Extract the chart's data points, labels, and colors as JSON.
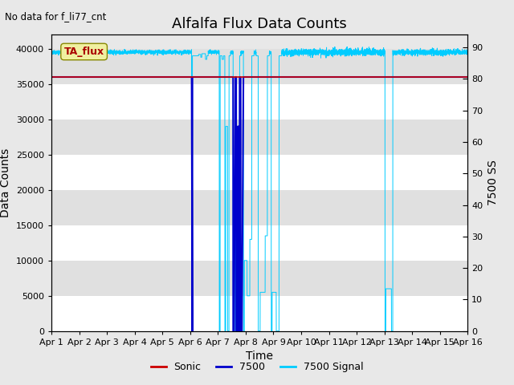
{
  "title": "Alfalfa Flux Data Counts",
  "no_data_label": "No data for f_li77_cnt",
  "ta_flux_label": "TA_flux",
  "xlabel": "Time",
  "ylabel_left": "Data Counts",
  "ylabel_right": "7500 SS",
  "xlim": [
    0,
    15
  ],
  "ylim_left": [
    0,
    42000
  ],
  "ylim_right": [
    0,
    94
  ],
  "yticks_left": [
    0,
    5000,
    10000,
    15000,
    20000,
    25000,
    30000,
    35000,
    40000
  ],
  "yticks_right": [
    0,
    10,
    20,
    30,
    40,
    50,
    60,
    70,
    80,
    90
  ],
  "xtick_labels": [
    "Apr 1",
    "Apr 2",
    "Apr 3",
    "Apr 4",
    "Apr 5",
    "Apr 6",
    "Apr 7",
    "Apr 8",
    "Apr 9",
    "Apr 10",
    "Apr 11",
    "Apr 12",
    "Apr 13",
    "Apr 14",
    "Apr 15",
    "Apr 16"
  ],
  "bg_light": "#e8e8e8",
  "bg_dark": "#d4d4d4",
  "bg_figure": "#e8e8e8",
  "sonic_color": "#cc0000",
  "c7500_color": "#0000cc",
  "signal_color": "#00ccff",
  "legend_labels": [
    "Sonic",
    "7500",
    "7500 Signal"
  ],
  "title_fontsize": 13,
  "label_fontsize": 10,
  "tick_fontsize": 8
}
